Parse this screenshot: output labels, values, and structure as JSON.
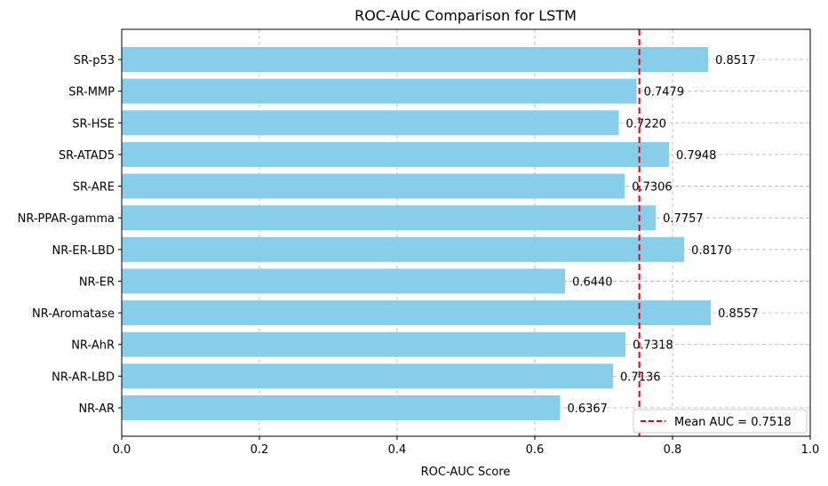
{
  "chart_data": {
    "type": "bar",
    "orientation": "horizontal",
    "title": "ROC-AUC Comparison for LSTM",
    "xlabel": "ROC-AUC Score",
    "ylabel": "",
    "xlim": [
      0,
      1
    ],
    "xticks": [
      "0.0",
      "0.2",
      "0.4",
      "0.6",
      "0.8",
      "1.0"
    ],
    "categories": [
      "NR-AR",
      "NR-AR-LBD",
      "NR-AhR",
      "NR-Aromatase",
      "NR-ER",
      "NR-ER-LBD",
      "NR-PPAR-gamma",
      "SR-ARE",
      "SR-ATAD5",
      "SR-HSE",
      "SR-MMP",
      "SR-p53"
    ],
    "values": [
      0.6367,
      0.7136,
      0.7318,
      0.8557,
      0.644,
      0.817,
      0.7757,
      0.7306,
      0.7948,
      0.722,
      0.7479,
      0.8517
    ],
    "value_labels": [
      "0.6367",
      "0.7136",
      "0.7318",
      "0.8557",
      "0.6440",
      "0.8170",
      "0.7757",
      "0.7306",
      "0.7948",
      "0.7220",
      "0.7479",
      "0.8517"
    ],
    "bar_color": "#87CEEB",
    "mean_line": {
      "value": 0.7518,
      "label": "Mean AUC = 0.7518",
      "color": "#e8000b",
      "style": "dashed"
    },
    "grid": true,
    "legend_position": "lower-right"
  }
}
